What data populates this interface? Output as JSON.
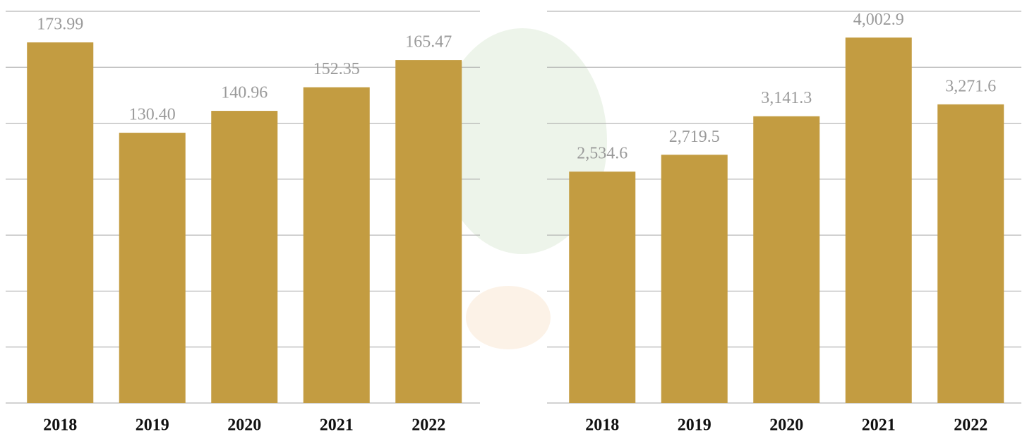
{
  "chart_data": [
    {
      "type": "bar",
      "categories": [
        "2018",
        "2019",
        "2020",
        "2021",
        "2022"
      ],
      "values": [
        173.99,
        130.4,
        140.96,
        152.35,
        165.47
      ],
      "value_labels": [
        "173.99",
        "130.40",
        "140.96",
        "152.35",
        "165.47"
      ],
      "color": "#c39c41",
      "ylim": [
        0,
        189
      ],
      "yticks": [
        0,
        27,
        54,
        81,
        108,
        135,
        162,
        189
      ],
      "grid": true
    },
    {
      "type": "bar",
      "categories": [
        "2018",
        "2019",
        "2020",
        "2021",
        "2022"
      ],
      "values": [
        2534.6,
        2719.5,
        3141.3,
        4002.9,
        3271.6
      ],
      "value_labels": [
        "2,534.6",
        "2,719.5",
        "3,141.3",
        "4,002.9",
        "3,271.6"
      ],
      "color": "#c39c41",
      "ylim": [
        0,
        4291
      ],
      "yticks": [
        0,
        613,
        1226,
        1839,
        2452,
        3065,
        3678,
        4291
      ],
      "grid": true
    }
  ]
}
